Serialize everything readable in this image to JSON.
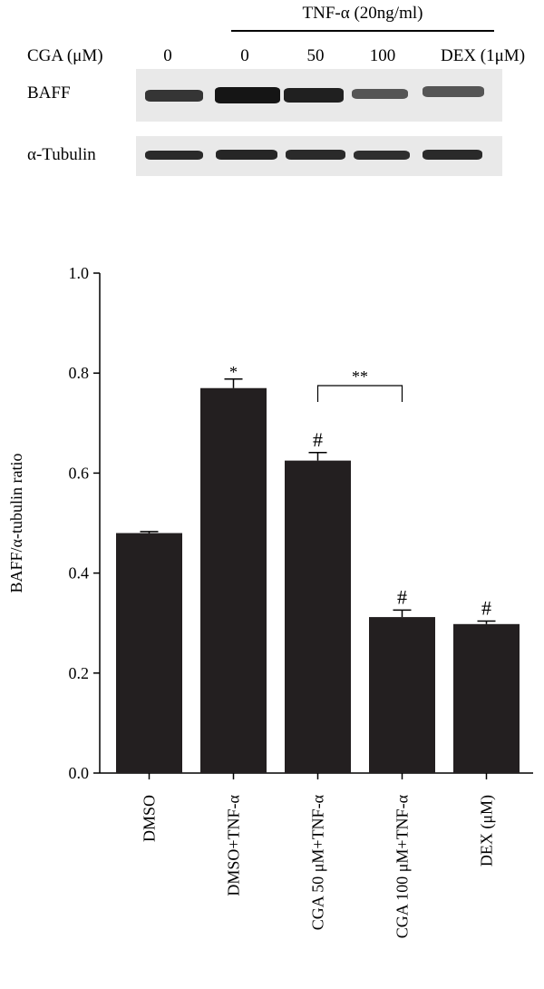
{
  "blot": {
    "header": "TNF-α (20ng/ml)",
    "cga_label": "CGA (μM)",
    "lanes": [
      "0",
      "0",
      "50",
      "100",
      "DEX (1μM)"
    ],
    "rows": [
      {
        "label": "BAFF",
        "intensity": [
          0.8,
          1.0,
          0.92,
          0.55,
          0.5
        ]
      },
      {
        "label": "α-Tubulin",
        "intensity": [
          0.9,
          0.92,
          0.9,
          0.88,
          0.9
        ]
      }
    ]
  },
  "chart_data": {
    "type": "bar",
    "categories": [
      "DMSO",
      "DMSO+TNF-α",
      "CGA 50 μM+TNF-α",
      "CGA 100 μM+TNF-α",
      "DEX (μM)"
    ],
    "values": [
      0.48,
      0.77,
      0.625,
      0.312,
      0.298
    ],
    "errors": [
      0.003,
      0.018,
      0.016,
      0.014,
      0.006
    ],
    "annotations": [
      "",
      "*",
      "#",
      "#",
      "#"
    ],
    "bracket": {
      "from": 2,
      "to": 3,
      "label": "**"
    },
    "ylabel": "BAFF/α-tubulin ratio",
    "xlabel": "",
    "ylim": [
      0,
      1.0
    ],
    "yticks": [
      "0.0",
      "0.2",
      "0.4",
      "0.6",
      "0.8",
      "1.0"
    ],
    "bar_color": "#231f20",
    "grid": false
  }
}
